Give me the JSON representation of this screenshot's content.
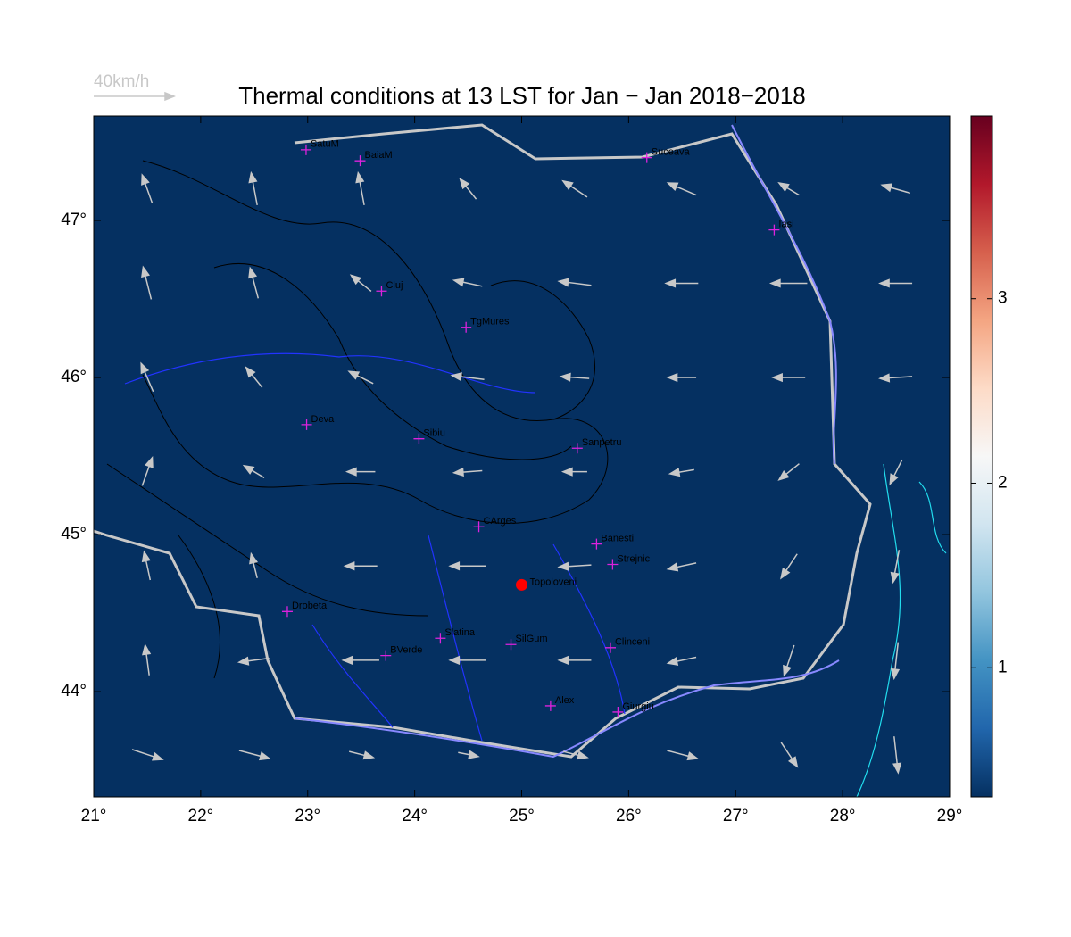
{
  "map": {
    "title": "Thermal conditions at 13 LST for Jan − Jan  2018−2018",
    "xlim": [
      21,
      29
    ],
    "ylim": [
      43.33,
      47.665
    ],
    "xticks": [
      {
        "value": 21,
        "label": "21°"
      },
      {
        "value": 22,
        "label": "22°"
      },
      {
        "value": 23,
        "label": "23°"
      },
      {
        "value": 24,
        "label": "24°"
      },
      {
        "value": 25,
        "label": "25°"
      },
      {
        "value": 26,
        "label": "26°"
      },
      {
        "value": 27,
        "label": "27°"
      },
      {
        "value": 28,
        "label": "28°"
      },
      {
        "value": 29,
        "label": "29°"
      }
    ],
    "yticks": [
      {
        "value": 44,
        "label": "44°"
      },
      {
        "value": 45,
        "label": "45°"
      },
      {
        "value": 46,
        "label": "46°"
      },
      {
        "value": 47,
        "label": "47°"
      }
    ],
    "colorbar": {
      "clim": [
        0.3,
        3.99
      ],
      "ticks": [
        1,
        2,
        3
      ],
      "colormap": [
        "#053061",
        "#2166ac",
        "#4393c3",
        "#92c5de",
        "#d1e5f0",
        "#f7f7f7",
        "#fddbc7",
        "#f4a582",
        "#d6604d",
        "#b2182b",
        "#67001f"
      ]
    },
    "wind": {
      "ref_label": "40km/h",
      "ref_speed": 40,
      "color": "#c8c8c8",
      "lons": [
        21.5,
        22.5,
        23.5,
        24.5,
        25.5,
        26.5,
        27.5,
        28.5
      ],
      "lats": [
        43.6,
        44.2,
        44.8,
        45.4,
        46.0,
        46.6,
        47.2
      ],
      "u": [
        [
          15,
          15,
          12,
          10,
          12,
          15,
          8,
          2
        ],
        [
          -2,
          -15,
          -18,
          -18,
          -16,
          -14,
          -5,
          -2
        ],
        [
          -3,
          -3,
          -16,
          -18,
          -16,
          -14,
          -8,
          -3
        ],
        [
          5,
          -10,
          -14,
          -14,
          -12,
          -12,
          -10,
          -6
        ],
        [
          -6,
          -8,
          -12,
          -16,
          -14,
          -14,
          -16,
          -16
        ],
        [
          -4,
          -4,
          -10,
          -14,
          -16,
          -16,
          -18,
          -16
        ],
        [
          -5,
          -3,
          -3,
          -8,
          -12,
          -14,
          -10,
          -14
        ]
      ],
      "v": [
        [
          -5,
          -4,
          -3,
          -2,
          -3,
          -4,
          -12,
          -18
        ],
        [
          15,
          -2,
          0,
          0,
          0,
          -3,
          -15,
          -18
        ],
        [
          14,
          12,
          0,
          0,
          -1,
          -3,
          -12,
          -16
        ],
        [
          14,
          6,
          0,
          -1,
          0,
          -2,
          -8,
          -12
        ],
        [
          14,
          10,
          6,
          2,
          1,
          0,
          0,
          -1
        ],
        [
          16,
          15,
          8,
          3,
          2,
          0,
          0,
          0
        ],
        [
          14,
          16,
          16,
          10,
          8,
          6,
          6,
          4
        ]
      ]
    },
    "station": {
      "name": "Topoloveni",
      "lon": 25.0,
      "lat": 44.68,
      "color": "#ff0000"
    },
    "city_color": "#dd22dd",
    "cities": [
      {
        "name": "SatuM",
        "lon": 22.985,
        "lat": 47.45
      },
      {
        "name": "BaiaM",
        "lon": 23.49,
        "lat": 47.38
      },
      {
        "name": "Suceava",
        "lon": 26.17,
        "lat": 47.4
      },
      {
        "name": "Iasi",
        "lon": 27.36,
        "lat": 46.94
      },
      {
        "name": "Cluj",
        "lon": 23.69,
        "lat": 46.55
      },
      {
        "name": "TgMures",
        "lon": 24.48,
        "lat": 46.32
      },
      {
        "name": "Deva",
        "lon": 22.99,
        "lat": 45.7
      },
      {
        "name": "Sibiu",
        "lon": 24.04,
        "lat": 45.61
      },
      {
        "name": "Sanpetru",
        "lon": 25.52,
        "lat": 45.55
      },
      {
        "name": "CArges",
        "lon": 24.6,
        "lat": 45.05
      },
      {
        "name": "Banesti",
        "lon": 25.7,
        "lat": 44.94
      },
      {
        "name": "Strejnic",
        "lon": 25.85,
        "lat": 44.81
      },
      {
        "name": "Drobeta",
        "lon": 22.81,
        "lat": 44.51
      },
      {
        "name": "Slatina",
        "lon": 24.24,
        "lat": 44.34
      },
      {
        "name": "SilGum",
        "lon": 24.9,
        "lat": 44.3
      },
      {
        "name": "BVerde",
        "lon": 23.73,
        "lat": 44.23
      },
      {
        "name": "Clinceni",
        "lon": 25.83,
        "lat": 44.28
      },
      {
        "name": "Alex",
        "lon": 25.27,
        "lat": 43.91
      },
      {
        "name": "Giurgiu",
        "lon": 25.9,
        "lat": 43.87
      }
    ]
  }
}
